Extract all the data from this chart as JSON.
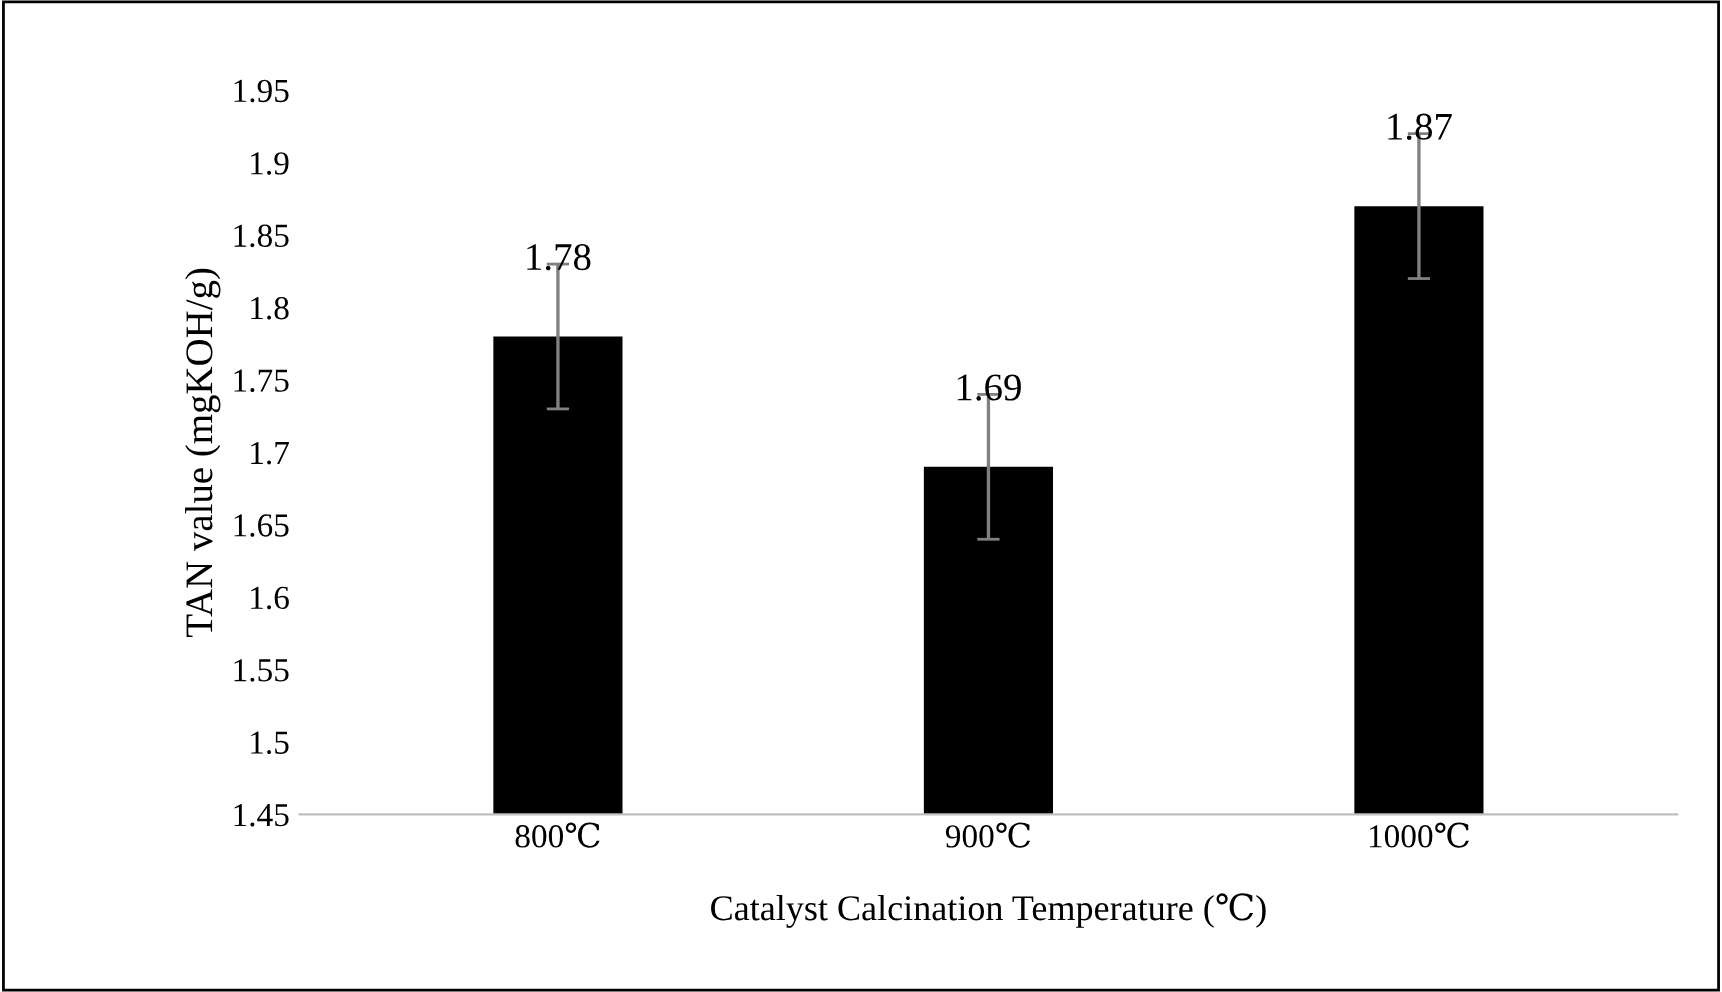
{
  "chart_data": {
    "type": "bar",
    "xlabel": "Catalyst Calcination Temperature (℃)",
    "ylabel": "TAN value (mgKOH/g)",
    "categories": [
      "800℃",
      "900℃",
      "1000℃"
    ],
    "values": [
      1.78,
      1.69,
      1.87
    ],
    "color": "#000000",
    "errors": [
      0.05,
      0.05,
      0.05
    ],
    "data_labels": true,
    "ylim": [
      1.45,
      1.95
    ],
    "yticks": [
      1.45,
      1.5,
      1.55,
      1.6,
      1.65,
      1.7,
      1.75,
      1.8,
      1.85,
      1.9,
      1.95
    ],
    "grid": false,
    "legend": false
  }
}
